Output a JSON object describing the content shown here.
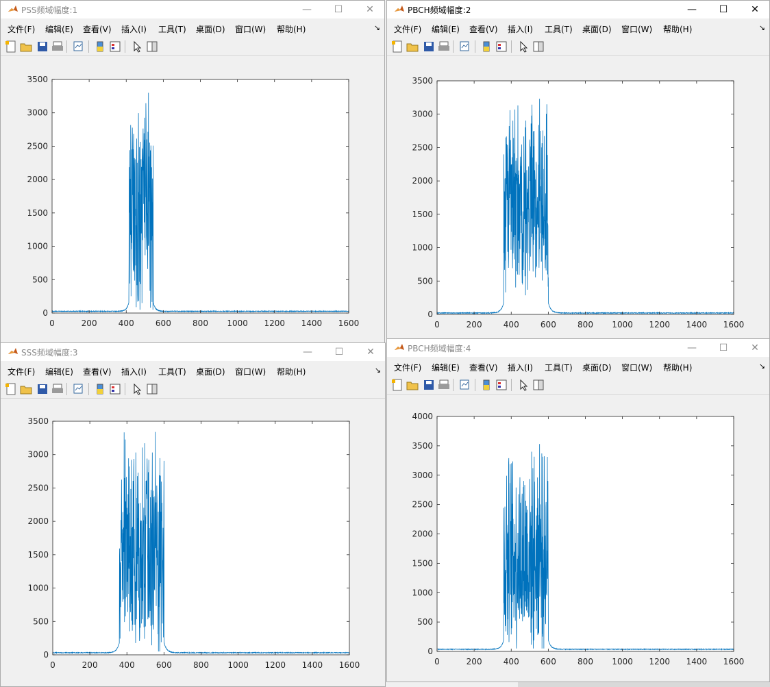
{
  "menu": [
    "文件(F)",
    "编辑(E)",
    "查看(V)",
    "插入(I)",
    "工具(T)",
    "桌面(D)",
    "窗口(W)",
    "帮助(H)"
  ],
  "colors": {
    "line": "#0072bd",
    "title_active": "#000000",
    "title_inactive": "#8a8a8a"
  },
  "toolbar_icons": [
    "new-figure-icon",
    "open-file-icon",
    "save-icon",
    "print-icon",
    "link-plot-icon",
    "insert-colorbar-icon",
    "insert-legend-icon",
    "edit-plot-arrow-icon",
    "property-inspector-icon"
  ],
  "windows": [
    {
      "id": "w1",
      "title": "PSS频域幅度:1",
      "active": false
    },
    {
      "id": "w2",
      "title": "PBCH频域幅度:2",
      "active": true
    },
    {
      "id": "w3",
      "title": "SSS频域幅度:3",
      "active": false
    },
    {
      "id": "w4",
      "title": "PBCH频域幅度:4",
      "active": false
    }
  ],
  "chart_data": [
    {
      "type": "line",
      "window": "PSS频域幅度:1",
      "xlim": [
        0,
        1600
      ],
      "ylim": [
        0,
        3500
      ],
      "xticks": [
        0,
        200,
        400,
        600,
        800,
        1000,
        1200,
        1400,
        1600
      ],
      "yticks": [
        0,
        500,
        1000,
        1500,
        2000,
        2500,
        3000,
        3500
      ],
      "grid": false,
      "series": [
        {
          "x_range": [
            1,
            1600
          ],
          "baseline": 20,
          "band": [
            415,
            545
          ],
          "band_median": 1500,
          "band_peak": 3300,
          "color": "#0072bd"
        }
      ]
    },
    {
      "type": "line",
      "window": "PBCH频域幅度:2",
      "xlim": [
        0,
        1600
      ],
      "ylim": [
        0,
        3500
      ],
      "xticks": [
        0,
        200,
        400,
        600,
        800,
        1000,
        1200,
        1400,
        1600
      ],
      "yticks": [
        0,
        500,
        1000,
        1500,
        2000,
        2500,
        3000,
        3500
      ],
      "grid": false,
      "series": [
        {
          "x_range": [
            1,
            1600
          ],
          "baseline": 15,
          "band": [
            360,
            600
          ],
          "band_median": 1700,
          "band_peak": 3230,
          "color": "#0072bd"
        }
      ]
    },
    {
      "type": "line",
      "window": "SSS频域幅度:3",
      "xlim": [
        0,
        1600
      ],
      "ylim": [
        0,
        3500
      ],
      "xticks": [
        0,
        200,
        400,
        600,
        800,
        1000,
        1200,
        1400,
        1600
      ],
      "yticks": [
        0,
        500,
        1000,
        1500,
        2000,
        2500,
        3000,
        3500
      ],
      "grid": false,
      "series": [
        {
          "x_range": [
            1,
            1600
          ],
          "baseline": 25,
          "band": [
            360,
            600
          ],
          "band_median": 1600,
          "band_peak": 3340,
          "color": "#0072bd"
        }
      ]
    },
    {
      "type": "line",
      "window": "PBCH频域幅度:4",
      "xlim": [
        0,
        1600
      ],
      "ylim": [
        0,
        4000
      ],
      "xticks": [
        0,
        200,
        400,
        600,
        800,
        1000,
        1200,
        1400,
        1600
      ],
      "yticks": [
        0,
        500,
        1000,
        1500,
        2000,
        2500,
        3000,
        3500,
        4000
      ],
      "grid": false,
      "series": [
        {
          "x_range": [
            1,
            1600
          ],
          "baseline": 30,
          "band": [
            360,
            600
          ],
          "band_median": 1650,
          "band_peak": 3530,
          "color": "#0072bd"
        }
      ]
    }
  ]
}
